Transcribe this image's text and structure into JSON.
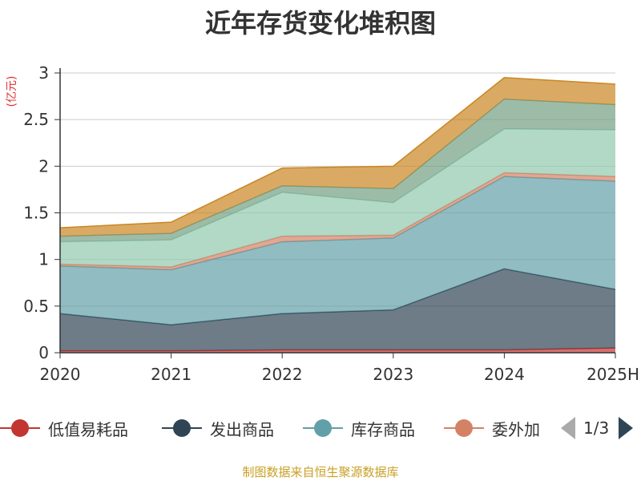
{
  "chart_data": {
    "type": "area",
    "title": "近年存货变化堆积图",
    "ylabel": "(亿元)",
    "categories": [
      "2020",
      "2021",
      "2022",
      "2023",
      "2024",
      "2025H"
    ],
    "ylim": [
      0,
      3
    ],
    "yticks": [
      "0",
      "0.5",
      "1",
      "1.5",
      "2",
      "2.5",
      "3"
    ],
    "stacked": true,
    "grid": true,
    "series": [
      {
        "name": "低值易耗品",
        "color": "#c23531",
        "values": [
          0.02,
          0.02,
          0.03,
          0.03,
          0.03,
          0.05
        ]
      },
      {
        "name": "发出商品",
        "color": "#2f4554",
        "values": [
          0.4,
          0.28,
          0.39,
          0.43,
          0.87,
          0.63
        ]
      },
      {
        "name": "库存商品",
        "color": "#61a0a8",
        "values": [
          0.51,
          0.59,
          0.77,
          0.77,
          0.99,
          1.16
        ]
      },
      {
        "name": "委外加",
        "color": "#d48265",
        "values": [
          0.02,
          0.03,
          0.06,
          0.03,
          0.04,
          0.05
        ]
      },
      {
        "name": "",
        "color": "#91c7ae",
        "values": [
          0.24,
          0.29,
          0.47,
          0.35,
          0.47,
          0.5
        ]
      },
      {
        "name": "",
        "color": "#749f83",
        "values": [
          0.06,
          0.07,
          0.07,
          0.15,
          0.32,
          0.27
        ]
      },
      {
        "name": "",
        "color": "#ca8622",
        "values": [
          0.09,
          0.12,
          0.19,
          0.24,
          0.23,
          0.22
        ]
      }
    ],
    "legend_position": "bottom"
  },
  "legend": {
    "items": [
      {
        "label": "低值易耗品",
        "color": "#c23531"
      },
      {
        "label": "发出商品",
        "color": "#2f4554"
      },
      {
        "label": "库存商品",
        "color": "#61a0a8"
      },
      {
        "label": "委外加",
        "color": "#d48265"
      }
    ],
    "page": "1/3"
  },
  "source": "制图数据来自恒生聚源数据库"
}
